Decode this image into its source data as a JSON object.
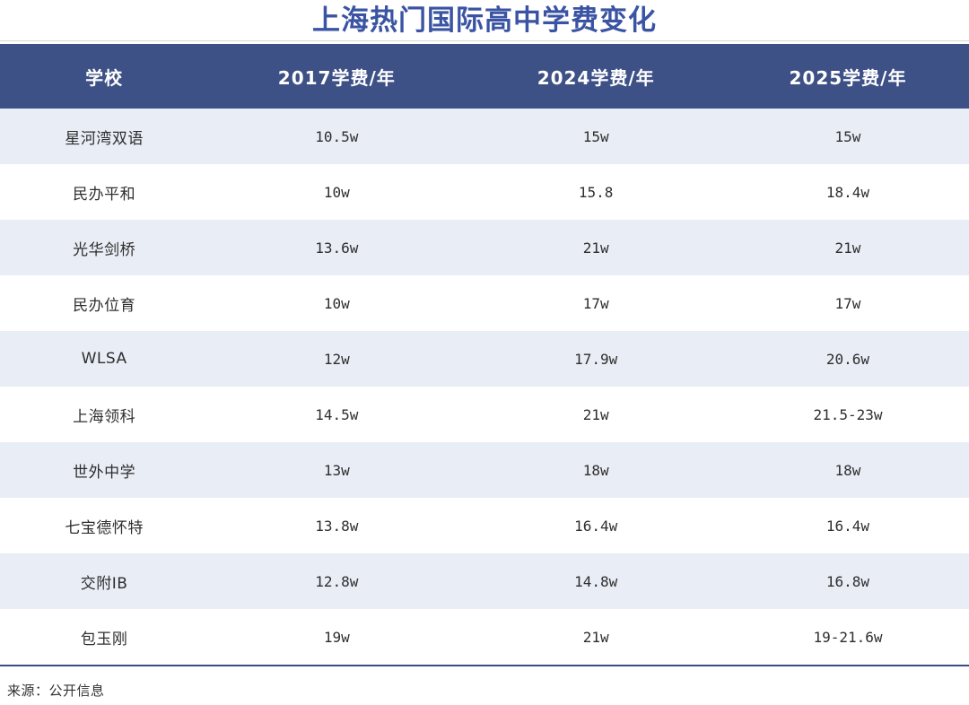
{
  "title": "上海热门国际高中学费变化",
  "source": "来源：公开信息",
  "colors": {
    "title_text": "#3A54A3",
    "header_bg": "#3E5186",
    "header_text": "#FFFFFF",
    "row_alt_bg": "#E9EDF6",
    "row_bg": "#FFFFFF",
    "body_text": "#2E2E2E",
    "bottom_rule": "#3C4B87",
    "top_rule": "#D9D9D9"
  },
  "chart_data": {
    "type": "table",
    "title": "上海热门国际高中学费变化",
    "columns": [
      "学校",
      "2017学费/年",
      "2024学费/年",
      "2025学费/年"
    ],
    "rows": [
      [
        "星河湾双语",
        "10.5w",
        "15w",
        "15w"
      ],
      [
        "民办平和",
        "10w",
        "15.8",
        "18.4w"
      ],
      [
        "光华剑桥",
        "13.6w",
        "21w",
        "21w"
      ],
      [
        "民办位育",
        "10w",
        "17w",
        "17w"
      ],
      [
        "WLSA",
        "12w",
        "17.9w",
        "20.6w"
      ],
      [
        "上海领科",
        "14.5w",
        "21w",
        "21.5-23w"
      ],
      [
        "世外中学",
        "13w",
        "18w",
        "18w"
      ],
      [
        "七宝德怀特",
        "13.8w",
        "16.4w",
        "16.4w"
      ],
      [
        "交附IB",
        "12.8w",
        "14.8w",
        "16.8w"
      ],
      [
        "包玉刚",
        "19w",
        "21w",
        "19-21.6w"
      ]
    ],
    "source": "来源：公开信息",
    "layout": {
      "zebra_striping": true,
      "first_row_shaded": true,
      "header_style": "solid-navy-band",
      "alignment": "center"
    }
  }
}
